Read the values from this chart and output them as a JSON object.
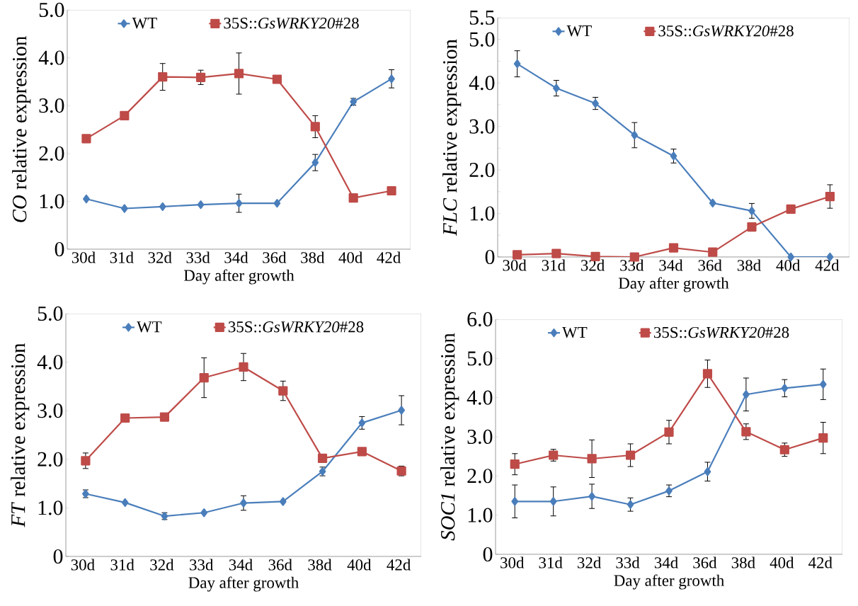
{
  "chart_data": [
    {
      "type": "line",
      "xlabel": "Day after growth",
      "ylabel": "*CO* relative expression",
      "legend": "top",
      "categories": [
        "30d",
        "31d",
        "32d",
        "33d",
        "34d",
        "36d",
        "38d",
        "40d",
        "42d"
      ],
      "ylim": [
        0,
        5
      ],
      "yticks": [
        {
          "value": 0,
          "label": "0"
        },
        {
          "value": 1,
          "label": "1.0"
        },
        {
          "value": 2,
          "label": "2.0"
        },
        {
          "value": 3,
          "label": "3.0"
        },
        {
          "value": 4,
          "label": "4.0"
        },
        {
          "value": 5,
          "label": "5.0"
        }
      ],
      "series": [
        {
          "name": "WT",
          "color": "#4a7ebb",
          "marker": "diamond",
          "values": [
            1.05,
            0.85,
            0.89,
            0.93,
            0.96,
            0.96,
            1.81,
            3.08,
            3.56
          ],
          "errors": [
            null,
            null,
            null,
            null,
            0.19,
            null,
            0.17,
            0.07,
            0.19
          ]
        },
        {
          "name": "35S::*GsWRKY20*#28",
          "color": "#be4b48",
          "marker": "square",
          "values": [
            2.31,
            2.79,
            3.6,
            3.59,
            3.67,
            3.55,
            2.56,
            1.07,
            1.22
          ],
          "errors": [
            null,
            null,
            0.28,
            0.15,
            0.43,
            null,
            0.23,
            null,
            null
          ]
        }
      ]
    },
    {
      "type": "line",
      "xlabel": "Day after growth",
      "ylabel": "*FLC* relative expression",
      "legend": "top",
      "categories": [
        "30d",
        "31d",
        "32d",
        "33d",
        "34d",
        "36d",
        "38d",
        "40d",
        "42d"
      ],
      "ylim": [
        0,
        5.5
      ],
      "yticks": [
        {
          "value": 0,
          "label": "0"
        },
        {
          "value": 0.5,
          "label": null
        },
        {
          "value": 1,
          "label": "1.0"
        },
        {
          "value": 1.5,
          "label": null
        },
        {
          "value": 2,
          "label": "2.0"
        },
        {
          "value": 2.5,
          "label": null
        },
        {
          "value": 3,
          "label": "3.0"
        },
        {
          "value": 3.5,
          "label": null
        },
        {
          "value": 4,
          "label": "4.0"
        },
        {
          "value": 4.5,
          "label": null
        },
        {
          "value": 5,
          "label": "5.0"
        },
        {
          "value": 5.5,
          "label": "5.5"
        }
      ],
      "series": [
        {
          "name": "WT",
          "color": "#4a7ebb",
          "marker": "diamond",
          "values": [
            4.44,
            3.88,
            3.53,
            2.8,
            2.32,
            1.24,
            1.06,
            0,
            0
          ],
          "errors": [
            0.3,
            0.18,
            0.14,
            0.29,
            0.16,
            null,
            0.17,
            null,
            null
          ]
        },
        {
          "name": "35S::*GsWRKY20*#28",
          "color": "#be4b48",
          "marker": "square",
          "values": [
            0.05,
            0.08,
            0.01,
            0,
            0.21,
            0.11,
            0.69,
            1.1,
            1.39
          ],
          "errors": [
            null,
            null,
            null,
            null,
            null,
            null,
            null,
            null,
            0.27
          ]
        }
      ]
    },
    {
      "type": "line",
      "xlabel": "Day after growth",
      "ylabel": "*FT* relative expression",
      "legend": "top",
      "categories": [
        "30d",
        "31d",
        "32d",
        "33d",
        "34d",
        "36d",
        "38d",
        "40d",
        "42d"
      ],
      "ylim": [
        0,
        5
      ],
      "yticks": [
        {
          "value": 0,
          "label": "0"
        },
        {
          "value": 1,
          "label": "1.0"
        },
        {
          "value": 2,
          "label": "2.0"
        },
        {
          "value": 3,
          "label": "3.0"
        },
        {
          "value": 4,
          "label": "4.0"
        },
        {
          "value": 5,
          "label": "5.0"
        }
      ],
      "series": [
        {
          "name": "WT",
          "color": "#4a7ebb",
          "marker": "diamond",
          "values": [
            1.29,
            1.11,
            0.83,
            0.9,
            1.1,
            1.13,
            1.75,
            2.75,
            3.01
          ],
          "errors": [
            0.08,
            null,
            0.07,
            null,
            0.15,
            null,
            0.09,
            0.13,
            0.3
          ]
        },
        {
          "name": "35S::*GsWRKY20*#28",
          "color": "#be4b48",
          "marker": "square",
          "values": [
            1.97,
            2.85,
            2.87,
            3.68,
            3.9,
            3.41,
            2.02,
            2.16,
            1.76
          ],
          "errors": [
            0.16,
            null,
            null,
            0.41,
            0.28,
            0.2,
            null,
            null,
            0.1
          ]
        }
      ]
    },
    {
      "type": "line",
      "xlabel": "Day after growth",
      "ylabel": "*SOC1* relative expression",
      "legend": "top",
      "categories": [
        "30d",
        "31d",
        "32d",
        "33d",
        "34d",
        "36d",
        "38d",
        "40d",
        "42d"
      ],
      "ylim": [
        0,
        6
      ],
      "yticks": [
        {
          "value": 0,
          "label": "0"
        },
        {
          "value": 1,
          "label": "1.0"
        },
        {
          "value": 2,
          "label": "2.0"
        },
        {
          "value": 3,
          "label": "3.0"
        },
        {
          "value": 4,
          "label": "4.0"
        },
        {
          "value": 5,
          "label": "5.0"
        },
        {
          "value": 6,
          "label": "6.0"
        }
      ],
      "series": [
        {
          "name": "WT",
          "color": "#4a7ebb",
          "marker": "diamond",
          "values": [
            1.35,
            1.35,
            1.48,
            1.27,
            1.62,
            2.11,
            4.08,
            4.24,
            4.34
          ],
          "errors": [
            0.42,
            0.37,
            0.31,
            0.17,
            0.15,
            0.24,
            0.42,
            0.22,
            0.39
          ]
        },
        {
          "name": "35S::*GsWRKY20*#28",
          "color": "#be4b48",
          "marker": "square",
          "values": [
            2.3,
            2.53,
            2.44,
            2.53,
            3.12,
            4.61,
            3.13,
            2.67,
            2.97
          ],
          "errors": [
            0.27,
            0.15,
            0.48,
            0.29,
            0.3,
            0.35,
            0.2,
            0.17,
            0.4
          ]
        }
      ]
    }
  ]
}
